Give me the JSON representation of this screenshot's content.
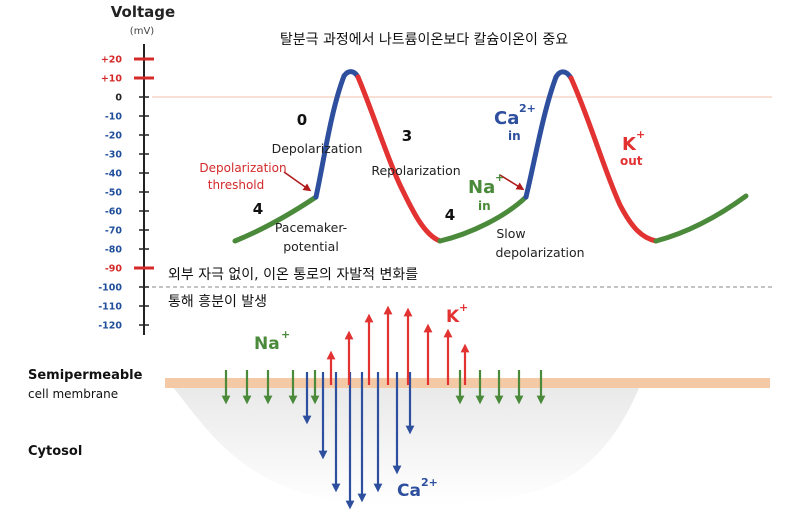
{
  "axis": {
    "title": "Voltage",
    "unit": "(mV)",
    "ticks": [
      {
        "label": "+20",
        "value": 20,
        "color": "#d42a2a"
      },
      {
        "label": "+10",
        "value": 10,
        "color": "#d42a2a"
      },
      {
        "label": "0",
        "value": 0,
        "color": "#222222"
      },
      {
        "label": "-10",
        "value": -10,
        "color": "#1f4e9a"
      },
      {
        "label": "-20",
        "value": -20,
        "color": "#1f4e9a"
      },
      {
        "label": "-30",
        "value": -30,
        "color": "#1f4e9a"
      },
      {
        "label": "-40",
        "value": -40,
        "color": "#1f4e9a"
      },
      {
        "label": "-50",
        "value": -50,
        "color": "#1f4e9a"
      },
      {
        "label": "-60",
        "value": -60,
        "color": "#1f4e9a"
      },
      {
        "label": "-70",
        "value": -70,
        "color": "#1f4e9a"
      },
      {
        "label": "-80",
        "value": -80,
        "color": "#1f4e9a"
      },
      {
        "label": "-90",
        "value": -90,
        "color": "#d42a2a"
      },
      {
        "label": "-100",
        "value": -100,
        "color": "#1f4e9a"
      },
      {
        "label": "-110",
        "value": -110,
        "color": "#1f4e9a"
      },
      {
        "label": "-120",
        "value": -120,
        "color": "#1f4e9a"
      }
    ]
  },
  "title_kr": "탈분극 과정에서 나트륨이온보다 칼슘이온이 중요",
  "note_kr_line1": "외부 자극 없이, 이온 통로의 자발적 변화를",
  "note_kr_line2": "통해 흥분이 발생",
  "phases": {
    "phase0": "0",
    "phase3": "3",
    "phase4a": "4",
    "phase4b": "4"
  },
  "labels": {
    "depolarization": "Depolarization",
    "repolarization": "Repolarization",
    "threshold_line1": "Depolarization",
    "threshold_line2": "threshold",
    "pacemaker_line1": "Pacemaker-",
    "pacemaker_line2": "potential",
    "slow_line1": "Slow",
    "slow_line2": "depolarization"
  },
  "ions": {
    "ca_in": {
      "main": "Ca",
      "sup": "2+",
      "sub": "in"
    },
    "k_out": {
      "main": "K",
      "sup": "+",
      "sub": "out"
    },
    "na_in": {
      "main": "Na",
      "sup": "+",
      "sub": "in"
    },
    "na_bottom": {
      "main": "Na",
      "sup": "+"
    },
    "k_bottom": {
      "main": "K",
      "sup": "+"
    },
    "ca_bottom": {
      "main": "Ca",
      "sup": "2+"
    }
  },
  "membrane": {
    "label_line1": "Semipermeable",
    "label_line2": "cell membrane",
    "cytosol": "Cytosol"
  },
  "colors": {
    "green": "#4a8a3a",
    "blue": "#2d4f9e",
    "red": "#e23232",
    "membrane": "#f4c9a5",
    "axis_red": "#d42a2a"
  }
}
